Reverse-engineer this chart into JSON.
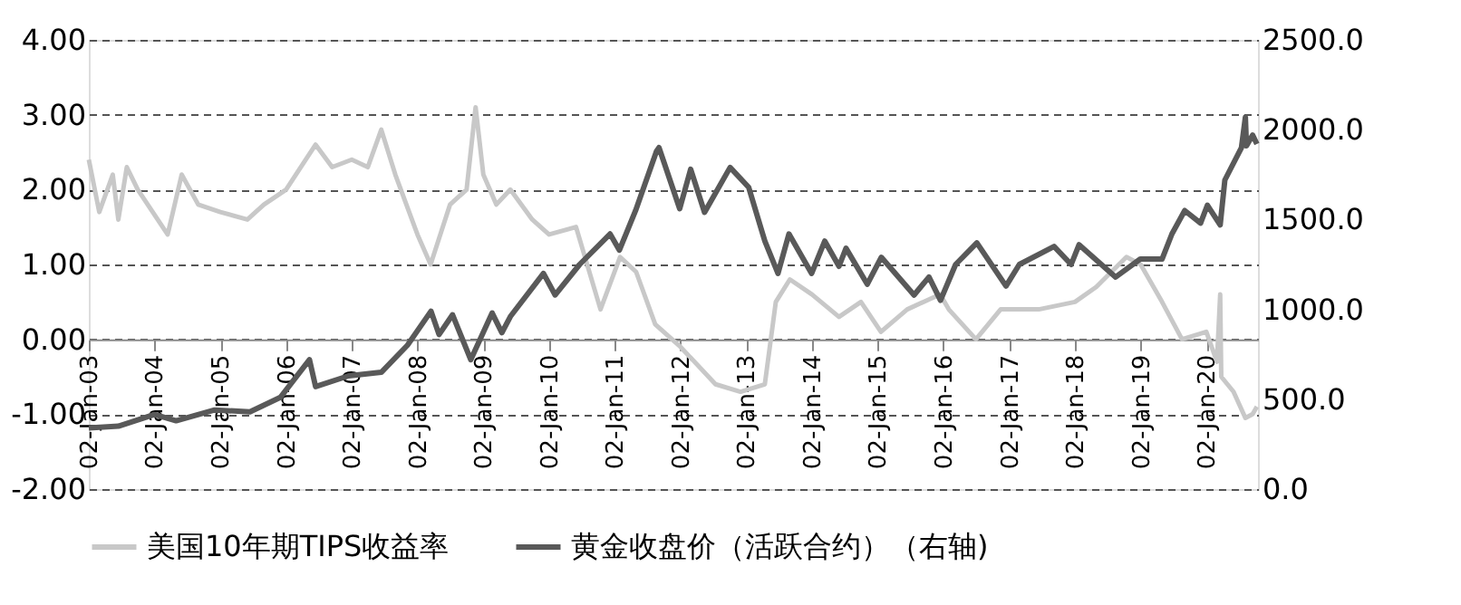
{
  "chart_data": {
    "type": "line",
    "ylim": [
      -2,
      4
    ],
    "yticks": [
      {
        "value": -2,
        "label": "-2.00"
      },
      {
        "value": -1,
        "label": "-1.00"
      },
      {
        "value": 0,
        "label": "0.00"
      },
      {
        "value": 1,
        "label": "1.00"
      },
      {
        "value": 2,
        "label": "2.00"
      },
      {
        "value": 3,
        "label": "3.00"
      },
      {
        "value": 4,
        "label": "4.00"
      }
    ],
    "y2lim": [
      0,
      2500
    ],
    "y2ticks": [
      {
        "value": 0,
        "label": "0.0"
      },
      {
        "value": 500,
        "label": "500.0"
      },
      {
        "value": 1000,
        "label": "1000.0"
      },
      {
        "value": 1500,
        "label": "1500.0"
      },
      {
        "value": 2000,
        "label": "2000.0"
      },
      {
        "value": 2500,
        "label": "2500.0"
      }
    ],
    "xlim": [
      "2003-01-02",
      "2020-10-15"
    ],
    "xticks": [
      {
        "value": "2003-01-02",
        "label": "02-Jan-03"
      },
      {
        "value": "2004-01-02",
        "label": "02-Jan-04"
      },
      {
        "value": "2005-01-02",
        "label": "02-Jan-05"
      },
      {
        "value": "2006-01-02",
        "label": "02-Jan-06"
      },
      {
        "value": "2007-01-02",
        "label": "02-Jan-07"
      },
      {
        "value": "2008-01-02",
        "label": "02-Jan-08"
      },
      {
        "value": "2009-01-02",
        "label": "02-Jan-09"
      },
      {
        "value": "2010-01-02",
        "label": "02-Jan-10"
      },
      {
        "value": "2011-01-02",
        "label": "02-Jan-11"
      },
      {
        "value": "2012-01-02",
        "label": "02-Jan-12"
      },
      {
        "value": "2013-01-02",
        "label": "02-Jan-13"
      },
      {
        "value": "2014-01-02",
        "label": "02-Jan-14"
      },
      {
        "value": "2015-01-02",
        "label": "02-Jan-15"
      },
      {
        "value": "2016-01-02",
        "label": "02-Jan-16"
      },
      {
        "value": "2017-01-02",
        "label": "02-Jan-17"
      },
      {
        "value": "2018-01-02",
        "label": "02-Jan-18"
      },
      {
        "value": "2019-01-02",
        "label": "02-Jan-19"
      },
      {
        "value": "2020-01-02",
        "label": "02-Jan-20"
      }
    ],
    "grid": "y",
    "legend": "bottom",
    "line_style": "solid",
    "marker": "none",
    "series": [
      {
        "name": "美国10年期TIPS收益率",
        "color": "#c8c8c8",
        "x": [
          "2003-01-02",
          "2003-03-01",
          "2003-05-15",
          "2003-06-15",
          "2003-08-01",
          "2003-10-01",
          "2004-03-15",
          "2004-06-01",
          "2004-09-01",
          "2005-01-02",
          "2005-06-01",
          "2005-09-01",
          "2006-01-02",
          "2006-06-15",
          "2006-09-15",
          "2007-01-02",
          "2007-04-01",
          "2007-06-15",
          "2007-09-01",
          "2008-01-02",
          "2008-03-15",
          "2008-07-01",
          "2008-10-01",
          "2008-11-20",
          "2009-01-02",
          "2009-03-15",
          "2009-06-01",
          "2009-10-01",
          "2010-01-02",
          "2010-06-01",
          "2010-10-15",
          "2011-02-01",
          "2011-05-01",
          "2011-08-15",
          "2012-01-02",
          "2012-07-15",
          "2012-12-01",
          "2013-04-15",
          "2013-06-15",
          "2013-09-01",
          "2014-01-02",
          "2014-06-01",
          "2014-10-01",
          "2015-01-20",
          "2015-06-15",
          "2015-12-15",
          "2016-02-01",
          "2016-07-01",
          "2016-11-15",
          "2017-01-02",
          "2017-06-15",
          "2018-01-02",
          "2018-05-01",
          "2018-10-15",
          "2019-01-02",
          "2019-05-01",
          "2019-08-20",
          "2020-01-02",
          "2020-03-01",
          "2020-03-19",
          "2020-03-25",
          "2020-06-01",
          "2020-08-06",
          "2020-09-15",
          "2020-10-09"
        ],
        "values": [
          2.4,
          1.7,
          2.2,
          1.6,
          2.3,
          2.0,
          1.4,
          2.2,
          1.8,
          1.7,
          1.6,
          1.8,
          2.0,
          2.6,
          2.3,
          2.4,
          2.3,
          2.8,
          2.2,
          1.4,
          1.0,
          1.8,
          2.0,
          3.1,
          2.2,
          1.8,
          2.0,
          1.6,
          1.4,
          1.5,
          0.4,
          1.1,
          0.9,
          0.2,
          -0.1,
          -0.6,
          -0.7,
          -0.6,
          0.5,
          0.8,
          0.6,
          0.3,
          0.5,
          0.1,
          0.4,
          0.6,
          0.4,
          0.0,
          0.4,
          0.4,
          0.4,
          0.5,
          0.7,
          1.1,
          1.0,
          0.5,
          0.0,
          0.1,
          -0.3,
          0.6,
          -0.5,
          -0.7,
          -1.05,
          -1.0,
          -0.9
        ]
      },
      {
        "name": "黄金收盘价（活跃合约）（右轴)",
        "color": "#595959",
        "axis": "y2",
        "x": [
          "2003-01-02",
          "2003-06-15",
          "2004-01-02",
          "2004-05-01",
          "2004-12-01",
          "2005-06-15",
          "2005-12-01",
          "2006-05-12",
          "2006-06-15",
          "2006-12-15",
          "2007-06-15",
          "2007-11-07",
          "2008-03-17",
          "2008-05-01",
          "2008-07-15",
          "2008-10-24",
          "2009-02-20",
          "2009-04-15",
          "2009-06-01",
          "2009-12-02",
          "2010-02-05",
          "2010-06-21",
          "2010-12-07",
          "2011-01-28",
          "2011-04-28",
          "2011-08-22",
          "2011-09-05",
          "2011-12-29",
          "2012-02-28",
          "2012-05-15",
          "2012-10-04",
          "2013-01-15",
          "2013-04-15",
          "2013-06-27",
          "2013-08-27",
          "2013-12-31",
          "2014-03-14",
          "2014-06-01",
          "2014-07-10",
          "2014-11-05",
          "2015-01-22",
          "2015-07-23",
          "2015-10-14",
          "2015-12-17",
          "2016-03-10",
          "2016-07-06",
          "2016-12-15",
          "2017-02-27",
          "2017-09-08",
          "2017-12-12",
          "2018-01-25",
          "2018-08-16",
          "2018-12-31",
          "2019-05-01",
          "2019-06-25",
          "2019-09-04",
          "2019-12-01",
          "2020-01-08",
          "2020-03-19",
          "2020-04-14",
          "2020-07-15",
          "2020-08-06",
          "2020-08-12",
          "2020-09-15",
          "2020-10-09"
        ],
        "values": [
          340,
          350,
          415,
          380,
          440,
          430,
          510,
          720,
          570,
          630,
          650,
          800,
          990,
          860,
          970,
          720,
          980,
          870,
          960,
          1200,
          1080,
          1250,
          1420,
          1330,
          1550,
          1880,
          1900,
          1560,
          1780,
          1540,
          1790,
          1680,
          1380,
          1200,
          1420,
          1200,
          1380,
          1240,
          1340,
          1140,
          1290,
          1080,
          1180,
          1050,
          1250,
          1370,
          1130,
          1250,
          1350,
          1250,
          1360,
          1180,
          1280,
          1280,
          1420,
          1550,
          1480,
          1580,
          1470,
          1720,
          1900,
          2070,
          1910,
          1970,
          1920
        ]
      }
    ]
  }
}
